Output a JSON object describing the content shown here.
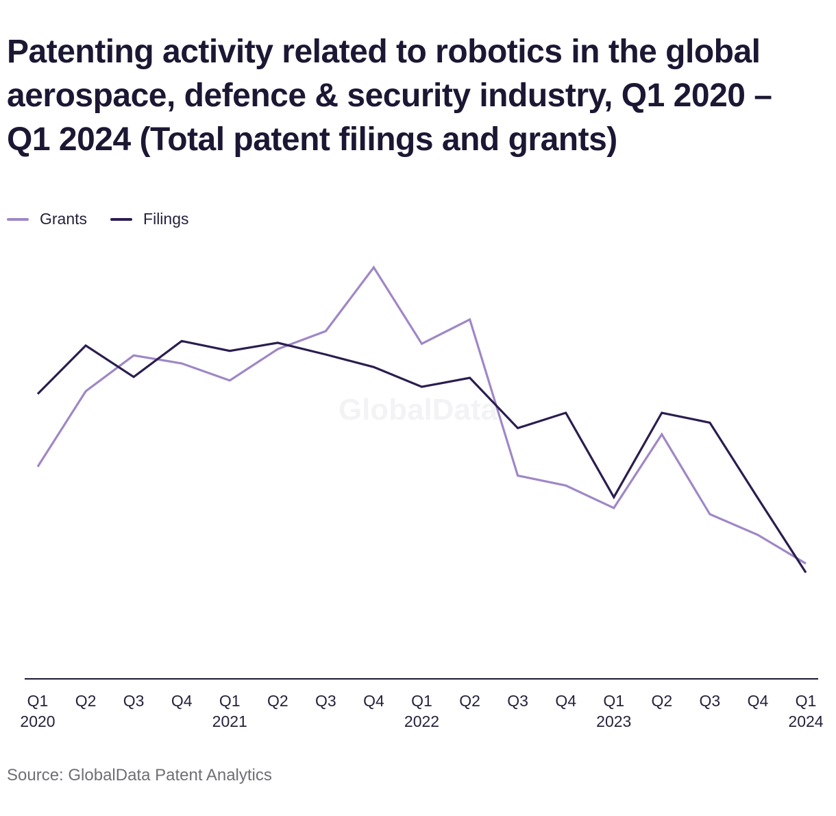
{
  "colors": {
    "grants": "#9f87c6",
    "filings": "#2b1d4f",
    "axis": "#1c1733",
    "text": "#26213b",
    "watermark": "#f3f3f6"
  },
  "chart_data": {
    "type": "line",
    "title": "Patenting activity related to robotics in the global aerospace, defence & security industry, Q1 2020 – Q1 2024 (Total patent filings and grants)",
    "watermark": "GlobalData",
    "source": "Source: GlobalData Patent Analytics",
    "x_quarters": [
      "Q1",
      "Q2",
      "Q3",
      "Q4",
      "Q1",
      "Q2",
      "Q3",
      "Q4",
      "Q1",
      "Q2",
      "Q3",
      "Q4",
      "Q1",
      "Q2",
      "Q3",
      "Q4",
      "Q1"
    ],
    "x_years": [
      "2020",
      "",
      "",
      "",
      "2021",
      "",
      "",
      "",
      "2022",
      "",
      "",
      "",
      "2023",
      "",
      "",
      "",
      "2024"
    ],
    "y_axis_labels": "none",
    "grid": false,
    "legend_position": "top-left",
    "series": [
      {
        "name": "Grants",
        "color": "#9f87c6",
        "values": [
          181,
          265,
          305,
          296,
          277,
          312,
          332,
          403,
          318,
          345,
          171,
          160,
          135,
          217,
          128,
          105,
          73
        ]
      },
      {
        "name": "Filings",
        "color": "#2b1d4f",
        "values": [
          262,
          316,
          281,
          321,
          310,
          319,
          306,
          292,
          270,
          280,
          224,
          241,
          147,
          241,
          230,
          146,
          63
        ]
      }
    ]
  }
}
